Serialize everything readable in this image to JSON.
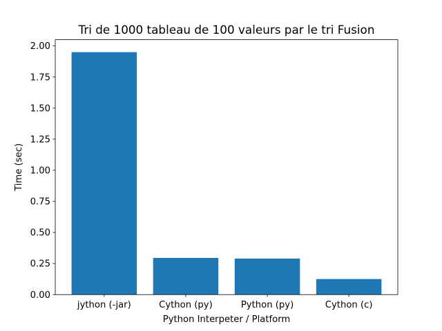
{
  "chart_data": {
    "type": "bar",
    "title": "Tri de 1000 tableau de 100 valeurs par le tri Fusion",
    "xlabel": "Python Interpeter / Platform",
    "ylabel": "Time (sec)",
    "categories": [
      "jython (-jar)",
      "Cython (py)",
      "Python (py)",
      "Cython (c)"
    ],
    "values": [
      1.95,
      0.295,
      0.29,
      0.125
    ],
    "ylim": [
      0,
      2.05
    ],
    "yticks": [
      0.0,
      0.25,
      0.5,
      0.75,
      1.0,
      1.25,
      1.5,
      1.75,
      2.0
    ],
    "ytick_labels": [
      "0.00",
      "0.25",
      "0.50",
      "0.75",
      "1.00",
      "1.25",
      "1.50",
      "1.75",
      "2.00"
    ],
    "grid": false,
    "bar_color": "#1f77b4"
  }
}
